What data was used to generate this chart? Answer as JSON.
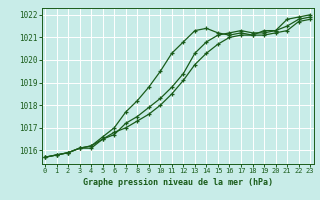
{
  "title": "Graphe pression niveau de la mer (hPa)",
  "bg_color": "#c8ece8",
  "line_color": "#1a5c1a",
  "grid_color": "#ffffff",
  "x_values": [
    0,
    1,
    2,
    3,
    4,
    5,
    6,
    7,
    8,
    9,
    10,
    11,
    12,
    13,
    14,
    15,
    16,
    17,
    18,
    19,
    20,
    21,
    22,
    23
  ],
  "series1": [
    1015.7,
    1015.8,
    1015.9,
    1016.1,
    1016.2,
    1016.5,
    1016.8,
    1017.0,
    1017.3,
    1017.6,
    1018.0,
    1018.5,
    1019.1,
    1019.8,
    1020.3,
    1020.7,
    1021.0,
    1021.1,
    1021.1,
    1021.1,
    1021.2,
    1021.3,
    1021.7,
    1021.8
  ],
  "series2": [
    1015.7,
    1015.8,
    1015.9,
    1016.1,
    1016.1,
    1016.5,
    1016.7,
    1017.2,
    1017.5,
    1017.9,
    1018.3,
    1018.8,
    1019.4,
    1020.3,
    1020.8,
    1021.1,
    1021.2,
    1021.3,
    1021.2,
    1021.2,
    1021.3,
    1021.5,
    1021.8,
    1021.9
  ],
  "series3": [
    1015.7,
    1015.8,
    1015.9,
    1016.1,
    1016.2,
    1016.6,
    1017.0,
    1017.7,
    1018.2,
    1018.8,
    1019.5,
    1020.3,
    1020.8,
    1021.3,
    1021.4,
    1021.2,
    1021.1,
    1021.2,
    1021.1,
    1021.3,
    1021.3,
    1021.8,
    1021.9,
    1022.0
  ],
  "ylim": [
    1015.4,
    1022.3
  ],
  "yticks": [
    1016,
    1017,
    1018,
    1019,
    1020,
    1021,
    1022
  ],
  "xlim": [
    -0.3,
    23.3
  ],
  "xticks": [
    0,
    1,
    2,
    3,
    4,
    5,
    6,
    7,
    8,
    9,
    10,
    11,
    12,
    13,
    14,
    15,
    16,
    17,
    18,
    19,
    20,
    21,
    22,
    23
  ],
  "marker": "+",
  "fig_width": 3.2,
  "fig_height": 2.0,
  "dpi": 100
}
